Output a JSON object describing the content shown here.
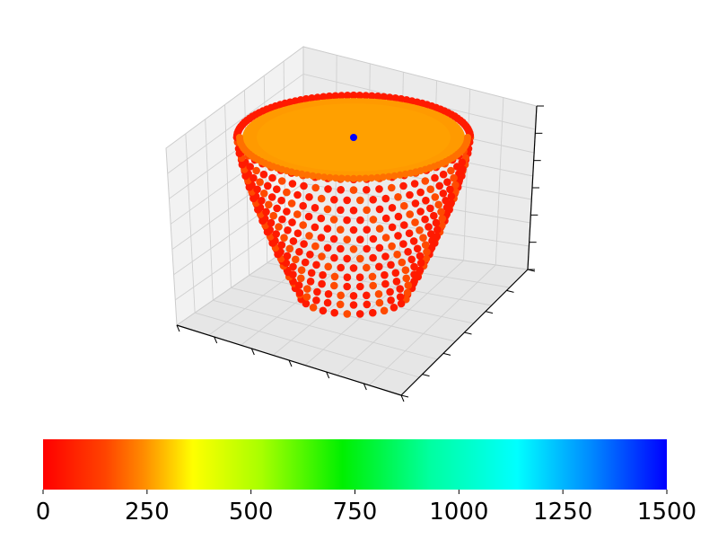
{
  "chart_data": {
    "type": "scatter",
    "projection": "3d",
    "axes": {
      "grid": true,
      "pane_color": "#f2f2f2",
      "tick_labels_visible": false
    },
    "series": [
      {
        "shape": "truncated-cone",
        "top_color": "#ff9a00",
        "side_colors": [
          "#ff1a00",
          "#ff4a00"
        ],
        "approx_value": 100
      },
      {
        "shape": "single-point",
        "color": "#0000ff",
        "approx_value": 1500
      }
    ],
    "colorbar": {
      "orientation": "horizontal",
      "colormap": "hsv-like (red-yellow-green-cyan-blue)",
      "range": [
        0,
        1500
      ],
      "ticks": [
        "0",
        "250",
        "500",
        "750",
        "1000",
        "1250",
        "1500"
      ],
      "tick_values": [
        0,
        250,
        500,
        750,
        1000,
        1250,
        1500
      ]
    }
  }
}
